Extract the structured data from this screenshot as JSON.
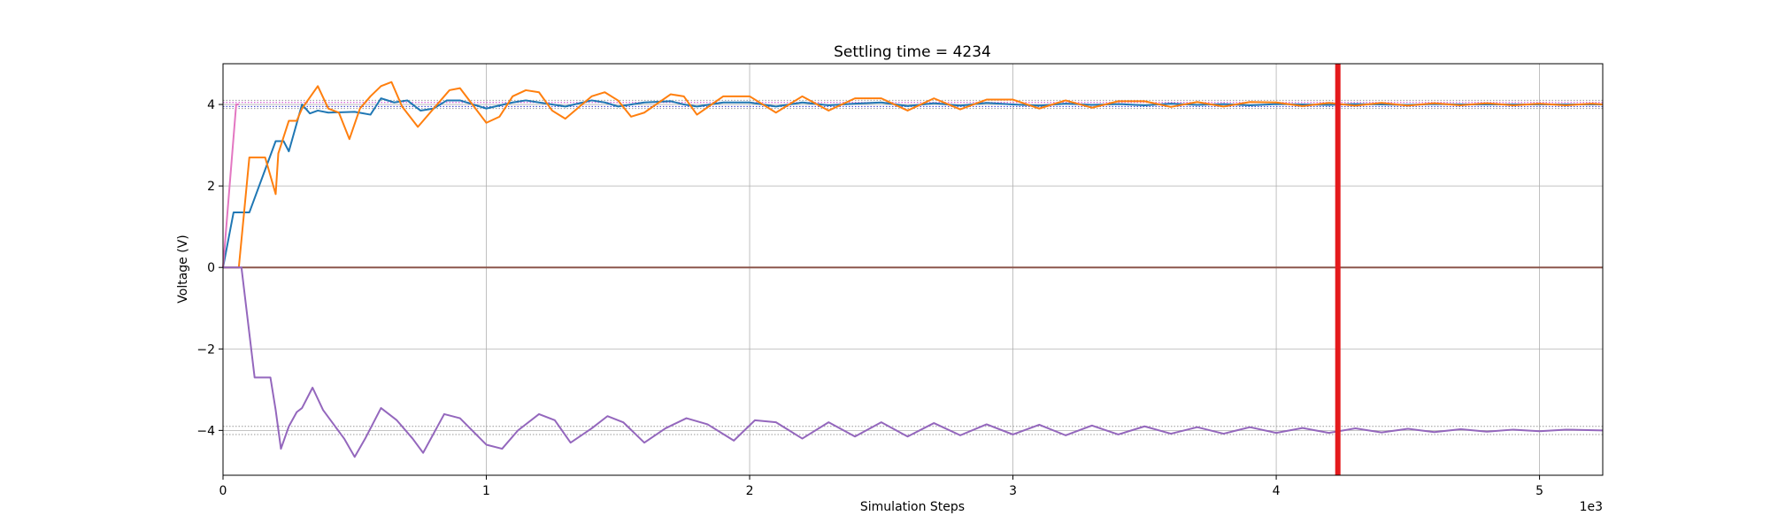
{
  "chart_data": {
    "type": "line",
    "title": "Settling time = 4234",
    "xlabel": "Simulation Steps",
    "ylabel": "Voltage (V)",
    "offset_text": "1e3",
    "xlim": [
      0,
      5.24
    ],
    "ylim": [
      -5.1,
      5.0
    ],
    "x_ticks": [
      0,
      1,
      2,
      3,
      4,
      5
    ],
    "x_tick_labels": [
      "0",
      "1",
      "2",
      "3",
      "4",
      "5"
    ],
    "y_ticks": [
      -4,
      -2,
      0,
      2,
      4
    ],
    "y_tick_labels": [
      "−4",
      "−2",
      "0",
      "2",
      "4"
    ],
    "grid": true,
    "settling_marker": {
      "x": 4.234,
      "color": "#e41a1c"
    },
    "reference_lines": [
      {
        "y": 4.1,
        "color": "#999999",
        "style": "dotted"
      },
      {
        "y": 4.05,
        "color": "#cc33cc",
        "style": "dotted"
      },
      {
        "y": 3.95,
        "color": "#3333cc",
        "style": "dotted"
      },
      {
        "y": 3.9,
        "color": "#999999",
        "style": "dotted"
      },
      {
        "y": -3.9,
        "color": "#999999",
        "style": "dotted"
      },
      {
        "y": -4.1,
        "color": "#999999",
        "style": "dotted"
      }
    ],
    "series": [
      {
        "color": "#1f77b4",
        "x": [
          0,
          0.04,
          0.1,
          0.2,
          0.23,
          0.25,
          0.3,
          0.33,
          0.36,
          0.4,
          0.5,
          0.56,
          0.6,
          0.65,
          0.7,
          0.75,
          0.8,
          0.85,
          0.9,
          1.0,
          1.1,
          1.15,
          1.2,
          1.3,
          1.4,
          1.45,
          1.5,
          1.6,
          1.7,
          1.75,
          1.8,
          1.9,
          2.0,
          2.1,
          2.2,
          2.3,
          2.4,
          2.5,
          2.6,
          2.7,
          2.8,
          2.9,
          3.0,
          3.1,
          3.2,
          3.3,
          3.4,
          3.5,
          3.6,
          3.7,
          3.8,
          3.9,
          4.0,
          4.1,
          4.2,
          4.3,
          4.4,
          4.5,
          4.6,
          4.7,
          4.8,
          4.9,
          5.0,
          5.1,
          5.24
        ],
        "y": [
          0,
          1.35,
          1.35,
          3.1,
          3.1,
          2.85,
          4.0,
          3.78,
          3.85,
          3.8,
          3.82,
          3.75,
          4.15,
          4.05,
          4.1,
          3.85,
          3.9,
          4.1,
          4.1,
          3.9,
          4.05,
          4.1,
          4.05,
          3.95,
          4.1,
          4.05,
          3.95,
          4.05,
          4.08,
          4.0,
          3.95,
          4.05,
          4.05,
          3.95,
          4.05,
          3.98,
          4.02,
          4.05,
          3.96,
          4.03,
          3.97,
          4.04,
          4.0,
          3.97,
          4.02,
          3.99,
          4.01,
          3.98,
          4.02,
          3.99,
          4.01,
          3.98,
          4.01,
          4.0,
          3.99,
          4.01,
          4.0,
          3.99,
          4.01,
          4.0,
          4.0,
          4.0,
          4.0,
          4.0,
          4.0
        ]
      },
      {
        "color": "#ff7f0e",
        "x": [
          0,
          0.06,
          0.1,
          0.16,
          0.2,
          0.21,
          0.25,
          0.28,
          0.3,
          0.36,
          0.4,
          0.44,
          0.48,
          0.52,
          0.56,
          0.6,
          0.64,
          0.68,
          0.74,
          0.8,
          0.86,
          0.9,
          1.0,
          1.05,
          1.1,
          1.15,
          1.2,
          1.25,
          1.3,
          1.4,
          1.45,
          1.5,
          1.55,
          1.6,
          1.7,
          1.75,
          1.8,
          1.9,
          2.0,
          2.1,
          2.2,
          2.3,
          2.4,
          2.5,
          2.6,
          2.7,
          2.8,
          2.9,
          3.0,
          3.1,
          3.2,
          3.3,
          3.4,
          3.5,
          3.6,
          3.7,
          3.8,
          3.9,
          4.0,
          4.1,
          4.2,
          4.3,
          4.4,
          4.5,
          4.6,
          4.7,
          4.8,
          4.9,
          5.0,
          5.1,
          5.2,
          5.24
        ],
        "y": [
          0,
          0,
          2.7,
          2.7,
          1.8,
          2.8,
          3.6,
          3.6,
          3.9,
          4.45,
          3.9,
          3.8,
          3.15,
          3.9,
          4.2,
          4.45,
          4.55,
          3.95,
          3.45,
          3.9,
          4.35,
          4.4,
          3.55,
          3.7,
          4.2,
          4.35,
          4.3,
          3.85,
          3.65,
          4.2,
          4.3,
          4.1,
          3.7,
          3.8,
          4.25,
          4.2,
          3.75,
          4.2,
          4.2,
          3.8,
          4.2,
          3.85,
          4.15,
          4.15,
          3.85,
          4.15,
          3.88,
          4.12,
          4.12,
          3.9,
          4.1,
          3.92,
          4.08,
          4.08,
          3.94,
          4.06,
          3.95,
          4.06,
          4.05,
          3.96,
          4.04,
          3.97,
          4.04,
          3.97,
          4.03,
          3.98,
          4.03,
          3.98,
          4.02,
          3.98,
          4.02,
          4.0
        ]
      },
      {
        "color": "#e377c2",
        "x": [
          0,
          0.05,
          0.06
        ],
        "y": [
          0,
          4.0,
          4.0
        ]
      },
      {
        "color": "#8c564b",
        "x": [
          0,
          5.24
        ],
        "y": [
          0,
          0
        ]
      },
      {
        "color": "#9467bd",
        "x": [
          0,
          0.07,
          0.12,
          0.18,
          0.2,
          0.22,
          0.25,
          0.28,
          0.3,
          0.34,
          0.38,
          0.42,
          0.46,
          0.5,
          0.54,
          0.6,
          0.66,
          0.72,
          0.76,
          0.84,
          0.9,
          1.0,
          1.06,
          1.12,
          1.2,
          1.26,
          1.32,
          1.4,
          1.46,
          1.52,
          1.6,
          1.68,
          1.76,
          1.84,
          1.94,
          2.02,
          2.1,
          2.2,
          2.3,
          2.4,
          2.5,
          2.6,
          2.7,
          2.8,
          2.9,
          3.0,
          3.1,
          3.2,
          3.3,
          3.4,
          3.5,
          3.6,
          3.7,
          3.8,
          3.9,
          4.0,
          4.1,
          4.2,
          4.3,
          4.4,
          4.5,
          4.6,
          4.7,
          4.8,
          4.9,
          5.0,
          5.1,
          5.24
        ],
        "y": [
          0,
          0,
          -2.7,
          -2.7,
          -3.5,
          -4.45,
          -3.9,
          -3.55,
          -3.45,
          -2.95,
          -3.5,
          -3.85,
          -4.2,
          -4.65,
          -4.2,
          -3.45,
          -3.75,
          -4.2,
          -4.55,
          -3.6,
          -3.7,
          -4.35,
          -4.45,
          -4.0,
          -3.6,
          -3.75,
          -4.3,
          -3.95,
          -3.65,
          -3.8,
          -4.3,
          -3.95,
          -3.7,
          -3.85,
          -4.25,
          -3.75,
          -3.8,
          -4.2,
          -3.8,
          -4.15,
          -3.8,
          -4.15,
          -3.82,
          -4.12,
          -3.85,
          -4.1,
          -3.86,
          -4.12,
          -3.88,
          -4.1,
          -3.9,
          -4.08,
          -3.92,
          -4.08,
          -3.92,
          -4.06,
          -3.94,
          -4.06,
          -3.95,
          -4.05,
          -3.96,
          -4.04,
          -3.97,
          -4.03,
          -3.98,
          -4.02,
          -3.98,
          -4.0
        ]
      }
    ]
  }
}
